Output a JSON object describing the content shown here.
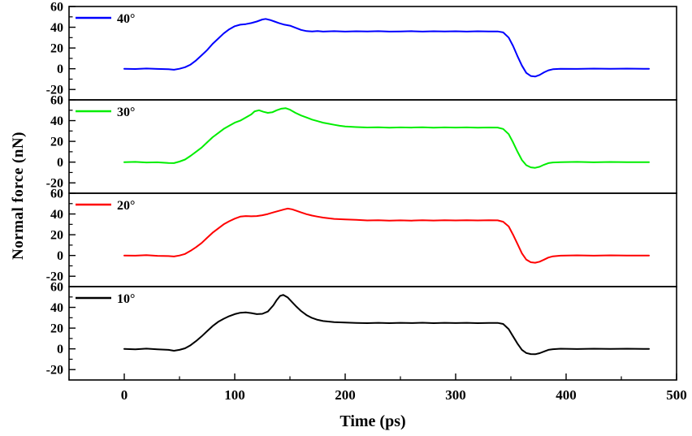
{
  "chart_data": {
    "type": "line",
    "title": "",
    "xlabel": "Time (ps)",
    "ylabel": "Normal force (nN)",
    "x_ticks": [
      0,
      100,
      200,
      300,
      400,
      500
    ],
    "x_minor_ticks": [
      -50,
      50,
      150,
      250,
      350,
      450
    ],
    "y_ticks": [
      -20,
      0,
      20,
      40,
      60
    ],
    "y_minor_ticks": [
      -10,
      10,
      30,
      50
    ],
    "xlim": [
      -50,
      500
    ],
    "ylim": [
      -30,
      60
    ],
    "grid": false,
    "legend_position": "top-left-inside-each-panel",
    "panels": [
      {
        "label": "40°",
        "color": "#0000ff",
        "points": [
          [
            0,
            0
          ],
          [
            10,
            -0.3
          ],
          [
            20,
            0.2
          ],
          [
            30,
            -0.2
          ],
          [
            40,
            -0.5
          ],
          [
            45,
            -1
          ],
          [
            50,
            0
          ],
          [
            55,
            1.5
          ],
          [
            60,
            4
          ],
          [
            65,
            8
          ],
          [
            70,
            13
          ],
          [
            75,
            18
          ],
          [
            80,
            24
          ],
          [
            85,
            29
          ],
          [
            90,
            34
          ],
          [
            95,
            38
          ],
          [
            100,
            41
          ],
          [
            105,
            42.5
          ],
          [
            110,
            43
          ],
          [
            115,
            44
          ],
          [
            120,
            45.5
          ],
          [
            125,
            47.5
          ],
          [
            128,
            48
          ],
          [
            132,
            47
          ],
          [
            136,
            45.5
          ],
          [
            140,
            44
          ],
          [
            145,
            42.5
          ],
          [
            150,
            41.5
          ],
          [
            155,
            39.5
          ],
          [
            160,
            37.5
          ],
          [
            165,
            36.3
          ],
          [
            170,
            36
          ],
          [
            175,
            36.4
          ],
          [
            180,
            35.8
          ],
          [
            190,
            36.2
          ],
          [
            200,
            35.8
          ],
          [
            210,
            36.1
          ],
          [
            220,
            35.9
          ],
          [
            230,
            36.2
          ],
          [
            240,
            35.8
          ],
          [
            250,
            36
          ],
          [
            260,
            36.2
          ],
          [
            270,
            35.8
          ],
          [
            280,
            36.1
          ],
          [
            290,
            35.9
          ],
          [
            300,
            36.1
          ],
          [
            310,
            35.8
          ],
          [
            320,
            36.1
          ],
          [
            330,
            36
          ],
          [
            338,
            36
          ],
          [
            343,
            35
          ],
          [
            348,
            30
          ],
          [
            352,
            22
          ],
          [
            356,
            12
          ],
          [
            360,
            3
          ],
          [
            364,
            -4
          ],
          [
            368,
            -7
          ],
          [
            372,
            -7.5
          ],
          [
            376,
            -6
          ],
          [
            380,
            -3.5
          ],
          [
            384,
            -1.5
          ],
          [
            388,
            -0.5
          ],
          [
            395,
            0
          ],
          [
            410,
            -0.2
          ],
          [
            425,
            0.1
          ],
          [
            440,
            -0.1
          ],
          [
            455,
            0.1
          ],
          [
            470,
            0
          ],
          [
            475,
            0
          ]
        ]
      },
      {
        "label": "30°",
        "color": "#00ee00",
        "points": [
          [
            0,
            0
          ],
          [
            10,
            0.2
          ],
          [
            20,
            -0.3
          ],
          [
            30,
            -0.2
          ],
          [
            40,
            -0.8
          ],
          [
            45,
            -1
          ],
          [
            50,
            0.5
          ],
          [
            55,
            2.5
          ],
          [
            60,
            6
          ],
          [
            65,
            10
          ],
          [
            70,
            14
          ],
          [
            75,
            19
          ],
          [
            80,
            24
          ],
          [
            85,
            28
          ],
          [
            90,
            32
          ],
          [
            95,
            35
          ],
          [
            100,
            38
          ],
          [
            105,
            40
          ],
          [
            110,
            43
          ],
          [
            115,
            46
          ],
          [
            118,
            49
          ],
          [
            122,
            50
          ],
          [
            126,
            48.5
          ],
          [
            130,
            47.5
          ],
          [
            134,
            48
          ],
          [
            138,
            50
          ],
          [
            142,
            51.5
          ],
          [
            146,
            52
          ],
          [
            150,
            50.5
          ],
          [
            155,
            47.5
          ],
          [
            160,
            45
          ],
          [
            165,
            43
          ],
          [
            170,
            41
          ],
          [
            175,
            39.5
          ],
          [
            180,
            38
          ],
          [
            185,
            37
          ],
          [
            190,
            36
          ],
          [
            195,
            35
          ],
          [
            200,
            34.3
          ],
          [
            210,
            33.8
          ],
          [
            220,
            33.4
          ],
          [
            230,
            33.6
          ],
          [
            240,
            33.2
          ],
          [
            250,
            33.5
          ],
          [
            260,
            33.3
          ],
          [
            270,
            33.6
          ],
          [
            280,
            33.2
          ],
          [
            290,
            33.5
          ],
          [
            300,
            33.3
          ],
          [
            310,
            33.5
          ],
          [
            320,
            33.2
          ],
          [
            330,
            33.4
          ],
          [
            338,
            33.3
          ],
          [
            343,
            32
          ],
          [
            348,
            27
          ],
          [
            352,
            19
          ],
          [
            356,
            10
          ],
          [
            360,
            2
          ],
          [
            364,
            -3
          ],
          [
            368,
            -5
          ],
          [
            372,
            -5.5
          ],
          [
            376,
            -4.5
          ],
          [
            380,
            -2.5
          ],
          [
            384,
            -1
          ],
          [
            388,
            -0.3
          ],
          [
            395,
            0
          ],
          [
            410,
            0.2
          ],
          [
            425,
            -0.2
          ],
          [
            440,
            0.1
          ],
          [
            455,
            -0.1
          ],
          [
            470,
            0
          ],
          [
            475,
            0
          ]
        ]
      },
      {
        "label": "20°",
        "color": "#ff0000",
        "points": [
          [
            0,
            0
          ],
          [
            10,
            -0.2
          ],
          [
            20,
            0.3
          ],
          [
            30,
            -0.3
          ],
          [
            40,
            -0.6
          ],
          [
            45,
            -1
          ],
          [
            50,
            0
          ],
          [
            55,
            1.5
          ],
          [
            60,
            4.5
          ],
          [
            65,
            8
          ],
          [
            70,
            12
          ],
          [
            75,
            17
          ],
          [
            80,
            22
          ],
          [
            85,
            26
          ],
          [
            90,
            30
          ],
          [
            95,
            33
          ],
          [
            100,
            35.5
          ],
          [
            105,
            37.5
          ],
          [
            110,
            38
          ],
          [
            115,
            37.8
          ],
          [
            120,
            38
          ],
          [
            125,
            38.8
          ],
          [
            130,
            40
          ],
          [
            135,
            41.5
          ],
          [
            140,
            43
          ],
          [
            145,
            44.5
          ],
          [
            148,
            45.2
          ],
          [
            152,
            44.5
          ],
          [
            156,
            43
          ],
          [
            160,
            41.5
          ],
          [
            165,
            39.8
          ],
          [
            170,
            38.5
          ],
          [
            175,
            37.5
          ],
          [
            180,
            36.5
          ],
          [
            190,
            35.3
          ],
          [
            200,
            34.8
          ],
          [
            210,
            34.3
          ],
          [
            220,
            33.8
          ],
          [
            230,
            34
          ],
          [
            240,
            33.6
          ],
          [
            250,
            33.9
          ],
          [
            260,
            33.6
          ],
          [
            270,
            34
          ],
          [
            280,
            33.7
          ],
          [
            290,
            34
          ],
          [
            300,
            33.8
          ],
          [
            310,
            34
          ],
          [
            320,
            33.8
          ],
          [
            330,
            34
          ],
          [
            338,
            33.9
          ],
          [
            343,
            32.5
          ],
          [
            348,
            28
          ],
          [
            352,
            20
          ],
          [
            356,
            11
          ],
          [
            360,
            2
          ],
          [
            364,
            -4
          ],
          [
            368,
            -6.5
          ],
          [
            372,
            -7
          ],
          [
            376,
            -6
          ],
          [
            380,
            -4
          ],
          [
            384,
            -2
          ],
          [
            388,
            -0.8
          ],
          [
            395,
            -0.2
          ],
          [
            410,
            0.1
          ],
          [
            425,
            -0.2
          ],
          [
            440,
            0.1
          ],
          [
            455,
            0
          ],
          [
            470,
            -0.1
          ],
          [
            475,
            0
          ]
        ]
      },
      {
        "label": "10°",
        "color": "#000000",
        "points": [
          [
            0,
            0
          ],
          [
            10,
            -0.4
          ],
          [
            20,
            0.2
          ],
          [
            30,
            -0.4
          ],
          [
            40,
            -1
          ],
          [
            45,
            -1.8
          ],
          [
            50,
            -1
          ],
          [
            55,
            0.5
          ],
          [
            60,
            3.5
          ],
          [
            65,
            7.5
          ],
          [
            70,
            12
          ],
          [
            75,
            17
          ],
          [
            80,
            22
          ],
          [
            85,
            26
          ],
          [
            90,
            29
          ],
          [
            95,
            31.5
          ],
          [
            100,
            33.5
          ],
          [
            105,
            34.8
          ],
          [
            110,
            35.2
          ],
          [
            115,
            34.5
          ],
          [
            120,
            33.5
          ],
          [
            125,
            33.8
          ],
          [
            130,
            36
          ],
          [
            135,
            42
          ],
          [
            138,
            47
          ],
          [
            141,
            51
          ],
          [
            144,
            52
          ],
          [
            148,
            49.5
          ],
          [
            152,
            45
          ],
          [
            156,
            40.5
          ],
          [
            160,
            36.5
          ],
          [
            165,
            32.5
          ],
          [
            170,
            29.8
          ],
          [
            175,
            28
          ],
          [
            180,
            26.8
          ],
          [
            190,
            25.8
          ],
          [
            200,
            25.3
          ],
          [
            210,
            25
          ],
          [
            220,
            24.8
          ],
          [
            230,
            25.1
          ],
          [
            240,
            24.8
          ],
          [
            250,
            25.1
          ],
          [
            260,
            24.9
          ],
          [
            270,
            25.2
          ],
          [
            280,
            24.8
          ],
          [
            290,
            25.1
          ],
          [
            300,
            24.9
          ],
          [
            310,
            25.1
          ],
          [
            320,
            24.8
          ],
          [
            330,
            25
          ],
          [
            338,
            25
          ],
          [
            343,
            24
          ],
          [
            348,
            19
          ],
          [
            352,
            12
          ],
          [
            356,
            5
          ],
          [
            360,
            -1
          ],
          [
            364,
            -4
          ],
          [
            368,
            -5
          ],
          [
            372,
            -5.2
          ],
          [
            376,
            -4.2
          ],
          [
            380,
            -2.5
          ],
          [
            384,
            -1
          ],
          [
            388,
            -0.3
          ],
          [
            395,
            0.1
          ],
          [
            410,
            -0.2
          ],
          [
            425,
            0.1
          ],
          [
            440,
            -0.1
          ],
          [
            455,
            0.1
          ],
          [
            470,
            0
          ],
          [
            475,
            0
          ]
        ]
      }
    ]
  }
}
